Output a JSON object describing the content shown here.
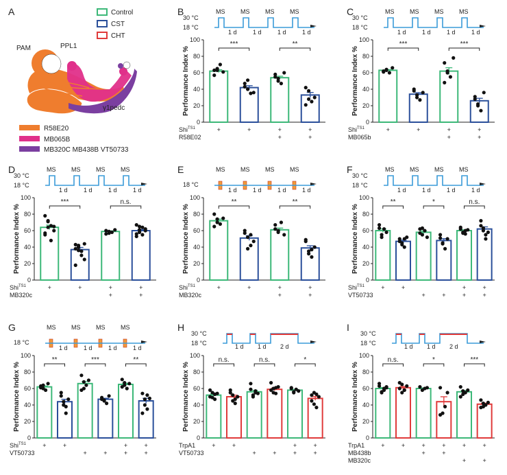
{
  "figure": {
    "panel_letters": [
      "A",
      "B",
      "C",
      "D",
      "E",
      "F",
      "G",
      "H",
      "I"
    ]
  },
  "legend": {
    "control_label": "Control",
    "cst_label": "CST",
    "cht_label": "CHT",
    "control_color": "#3cb878",
    "cst_color": "#2a4f9a",
    "cht_color": "#e03a3a"
  },
  "anatomy": {
    "pam_label": "PAM",
    "ppl1_label": "PPL1",
    "pedc_label": "γ1pedc",
    "key": [
      {
        "label": "R58E20",
        "color": "#ef7d2e"
      },
      {
        "label": "MB065B",
        "color": "#e0308a"
      },
      {
        "label": "MB320C MB438B VT50733",
        "color": "#7b3fa0"
      }
    ]
  },
  "axis": {
    "ylabel": "Performance Index %",
    "ticks": [
      "0",
      "20",
      "40",
      "60",
      "80",
      "100"
    ]
  },
  "protocol_text": {
    "t30": "30 °C",
    "t18": "18 °C",
    "ms": "MS",
    "day": "1 d",
    "two_day": "2 d"
  },
  "chart_data": [
    {
      "panel": "B",
      "type": "bar",
      "ylabel": "Performance Index %",
      "ylim": [
        0,
        100
      ],
      "protocol": "temp-ms",
      "ms_count": 4,
      "bars": [
        {
          "group": "control",
          "value": 62
        },
        {
          "group": "cst",
          "value": 42
        },
        {
          "group": "control",
          "value": 54
        },
        {
          "group": "cst",
          "value": 33
        }
      ],
      "points": [
        [
          57,
          65,
          70,
          61,
          63,
          63
        ],
        [
          43,
          40,
          35,
          36,
          47,
          51
        ],
        [
          55,
          50,
          47,
          60,
          58,
          53
        ],
        [
          42,
          28,
          25,
          30,
          21,
          38
        ]
      ],
      "sig": [
        {
          "pair": [
            0,
            1
          ],
          "label": "***"
        },
        {
          "pair": [
            2,
            3
          ],
          "label": "**"
        }
      ],
      "rows": [
        {
          "label": "Shi",
          "sup": "TS1",
          "marks": [
            "+",
            "+",
            "+",
            "+"
          ]
        },
        {
          "label": "R58E02",
          "sup": "",
          "marks": [
            "",
            "",
            "+",
            "+"
          ]
        }
      ]
    },
    {
      "panel": "C",
      "type": "bar",
      "ylabel": "Performance Index %",
      "ylim": [
        0,
        100
      ],
      "protocol": "temp-ms",
      "ms_count": 4,
      "bars": [
        {
          "group": "control",
          "value": 63
        },
        {
          "group": "cst",
          "value": 34
        },
        {
          "group": "control",
          "value": 62
        },
        {
          "group": "cst",
          "value": 26
        }
      ],
      "points": [
        [
          62,
          64,
          60,
          66,
          61,
          63
        ],
        [
          38,
          30,
          27,
          36,
          40,
          33
        ],
        [
          72,
          60,
          55,
          78,
          48,
          62
        ],
        [
          28,
          20,
          14,
          36,
          31,
          22
        ]
      ],
      "sig": [
        {
          "pair": [
            0,
            1
          ],
          "label": "***"
        },
        {
          "pair": [
            2,
            3
          ],
          "label": "***"
        }
      ],
      "rows": [
        {
          "label": "Shi",
          "sup": "TS1",
          "marks": [
            "+",
            "+",
            "+",
            "+"
          ]
        },
        {
          "label": "MB065b",
          "sup": "",
          "marks": [
            "",
            "",
            "+",
            "+"
          ]
        }
      ]
    },
    {
      "panel": "D",
      "type": "bar",
      "ylabel": "Performance Index %",
      "ylim": [
        0,
        100
      ],
      "protocol": "temp-ms",
      "ms_count": 4,
      "bars": [
        {
          "group": "control",
          "value": 64
        },
        {
          "group": "cst",
          "value": 37
        },
        {
          "group": "control",
          "value": 59
        },
        {
          "group": "cst",
          "value": 60
        }
      ],
      "points": [
        [
          78,
          72,
          66,
          60,
          57,
          64,
          48,
          65,
          55,
          71
        ],
        [
          43,
          36,
          30,
          25,
          18,
          40,
          35,
          44,
          38,
          42
        ],
        [
          60,
          57,
          58,
          61,
          56,
          59
        ],
        [
          67,
          61,
          55,
          62,
          53,
          58,
          64,
          60,
          56,
          65
        ]
      ],
      "sig": [
        {
          "pair": [
            0,
            1
          ],
          "label": "***"
        },
        {
          "pair": [
            2,
            3
          ],
          "label": "n.s."
        }
      ],
      "rows": [
        {
          "label": "Shi",
          "sup": "TS1",
          "marks": [
            "+",
            "+",
            "+",
            "+"
          ]
        },
        {
          "label": "MB320c",
          "sup": "",
          "marks": [
            "",
            "",
            "+",
            "+"
          ]
        }
      ]
    },
    {
      "panel": "E",
      "type": "bar",
      "ylabel": "Performance Index %",
      "ylim": [
        0,
        100
      ],
      "protocol": "ms-only",
      "ms_count": 4,
      "bars": [
        {
          "group": "control",
          "value": 72
        },
        {
          "group": "cst",
          "value": 51
        },
        {
          "group": "control",
          "value": 61
        },
        {
          "group": "cst",
          "value": 39
        }
      ],
      "points": [
        [
          80,
          70,
          68,
          75,
          65,
          74
        ],
        [
          57,
          52,
          42,
          47,
          60,
          38,
          55
        ],
        [
          67,
          60,
          70,
          55,
          62,
          58
        ],
        [
          47,
          32,
          28,
          40,
          49,
          35,
          37
        ]
      ],
      "sig": [
        {
          "pair": [
            0,
            1
          ],
          "label": "**"
        },
        {
          "pair": [
            2,
            3
          ],
          "label": "**"
        }
      ],
      "rows": [
        {
          "label": "Shi",
          "sup": "TS1",
          "marks": [
            "+",
            "+",
            "+",
            "+"
          ]
        },
        {
          "label": "MB320c",
          "sup": "",
          "marks": [
            "",
            "",
            "+",
            "+"
          ]
        }
      ]
    },
    {
      "panel": "F",
      "type": "bar",
      "ylabel": "Performance Index %",
      "ylim": [
        0,
        100
      ],
      "protocol": "temp-ms",
      "ms_count": 4,
      "bars": [
        {
          "group": "control",
          "value": 60
        },
        {
          "group": "cst",
          "value": 47
        },
        {
          "group": "control",
          "value": 58
        },
        {
          "group": "cst",
          "value": 48
        },
        {
          "group": "control",
          "value": 60
        },
        {
          "group": "cst",
          "value": 62
        }
      ],
      "points": [
        [
          67,
          55,
          62,
          58,
          63,
          52
        ],
        [
          50,
          45,
          40,
          52,
          47,
          43,
          50
        ],
        [
          62,
          55,
          60,
          52,
          57,
          63
        ],
        [
          51,
          45,
          38,
          50,
          55,
          44
        ],
        [
          64,
          58,
          56,
          61,
          62,
          57,
          60
        ],
        [
          72,
          63,
          55,
          58,
          66,
          60,
          50
        ]
      ],
      "sig": [
        {
          "pair": [
            0,
            1
          ],
          "label": "**"
        },
        {
          "pair": [
            2,
            3
          ],
          "label": "*"
        },
        {
          "pair": [
            4,
            5
          ],
          "label": "n.s."
        }
      ],
      "rows": [
        {
          "label": "Shi",
          "sup": "TS1",
          "marks": [
            "+",
            "+",
            "",
            "",
            "+",
            "+"
          ]
        },
        {
          "label": "VT50733",
          "sup": "",
          "marks": [
            "",
            "",
            "+",
            "+",
            "+",
            "+"
          ]
        }
      ]
    },
    {
      "panel": "G",
      "type": "bar",
      "ylabel": "Performance Index %",
      "ylim": [
        0,
        100
      ],
      "protocol": "ms-only",
      "ms_count": 4,
      "bars": [
        {
          "group": "control",
          "value": 62
        },
        {
          "group": "cst",
          "value": 44
        },
        {
          "group": "control",
          "value": 66
        },
        {
          "group": "cst",
          "value": 47
        },
        {
          "group": "control",
          "value": 65
        },
        {
          "group": "cst",
          "value": 45
        }
      ],
      "points": [
        [
          63,
          60,
          58,
          66,
          61,
          64
        ],
        [
          51,
          40,
          30,
          47,
          55,
          44,
          38
        ],
        [
          76,
          60,
          64,
          70,
          58,
          68
        ],
        [
          49,
          45,
          42,
          51,
          47,
          46
        ],
        [
          71,
          64,
          60,
          66,
          62,
          67
        ],
        [
          54,
          40,
          35,
          48,
          30,
          47,
          52
        ]
      ],
      "sig": [
        {
          "pair": [
            0,
            1
          ],
          "label": "**"
        },
        {
          "pair": [
            2,
            3
          ],
          "label": "***"
        },
        {
          "pair": [
            4,
            5
          ],
          "label": "**"
        }
      ],
      "rows": [
        {
          "label": "Shi",
          "sup": "TS1",
          "marks": [
            "+",
            "+",
            "",
            "",
            "+",
            "+"
          ]
        },
        {
          "label": "VT50733",
          "sup": "",
          "marks": [
            "",
            "",
            "+",
            "+",
            "+",
            "+"
          ]
        }
      ]
    },
    {
      "panel": "H",
      "type": "bar",
      "ylabel": "Performance Index %",
      "ylim": [
        0,
        100
      ],
      "protocol": "trpa1",
      "bars": [
        {
          "group": "control",
          "value": 52
        },
        {
          "group": "cht",
          "value": 50
        },
        {
          "group": "control",
          "value": 56
        },
        {
          "group": "cht",
          "value": 59
        },
        {
          "group": "control",
          "value": 58
        },
        {
          "group": "cht",
          "value": 48
        }
      ],
      "points": [
        [
          50,
          55,
          47,
          54,
          58,
          49,
          53
        ],
        [
          55,
          45,
          42,
          50,
          58,
          52,
          47
        ],
        [
          66,
          52,
          57,
          54,
          59,
          50,
          55
        ],
        [
          67,
          60,
          54,
          62,
          58,
          55,
          61
        ],
        [
          61,
          55,
          59,
          57,
          60,
          56
        ],
        [
          52,
          41,
          37,
          50,
          45,
          55,
          53
        ]
      ],
      "sig": [
        {
          "pair": [
            0,
            1
          ],
          "label": "n.s."
        },
        {
          "pair": [
            2,
            3
          ],
          "label": "n.s."
        },
        {
          "pair": [
            4,
            5
          ],
          "label": "*"
        }
      ],
      "rows": [
        {
          "label": "TrpA1",
          "sup": "",
          "marks": [
            "+",
            "+",
            "",
            "",
            "+",
            "+"
          ]
        },
        {
          "label": "VT50733",
          "sup": "",
          "marks": [
            "",
            "",
            "+",
            "+",
            "+",
            "+"
          ]
        }
      ]
    },
    {
      "panel": "I",
      "type": "bar",
      "ylabel": "Performance Index %",
      "ylim": [
        0,
        100
      ],
      "protocol": "trpa1",
      "bars": [
        {
          "group": "control",
          "value": 60
        },
        {
          "group": "cht",
          "value": 61
        },
        {
          "group": "control",
          "value": 60
        },
        {
          "group": "cht",
          "value": 44
        },
        {
          "group": "control",
          "value": 56
        },
        {
          "group": "cht",
          "value": 41
        }
      ],
      "points": [
        [
          63,
          55,
          58,
          61,
          66,
          56,
          60,
          62
        ],
        [
          67,
          55,
          58,
          63,
          60,
          65,
          58
        ],
        [
          62,
          58,
          60,
          61
        ],
        [
          61,
          30,
          38,
          55,
          28
        ],
        [
          62,
          53,
          55,
          58,
          50,
          57
        ],
        [
          46,
          38,
          40,
          43,
          37,
          42
        ]
      ],
      "sig": [
        {
          "pair": [
            0,
            1
          ],
          "label": "n.s."
        },
        {
          "pair": [
            2,
            3
          ],
          "label": "*"
        },
        {
          "pair": [
            4,
            5
          ],
          "label": "***"
        }
      ],
      "rows": [
        {
          "label": "TrpA1",
          "sup": "",
          "marks": [
            "+",
            "+",
            "+",
            "+",
            "+",
            "+"
          ]
        },
        {
          "label": "MB438b",
          "sup": "",
          "marks": [
            "",
            "",
            "+",
            "+",
            "",
            ""
          ]
        },
        {
          "label": "MB320c",
          "sup": "",
          "marks": [
            "",
            "",
            "",
            "",
            "+",
            "+"
          ]
        }
      ]
    }
  ]
}
